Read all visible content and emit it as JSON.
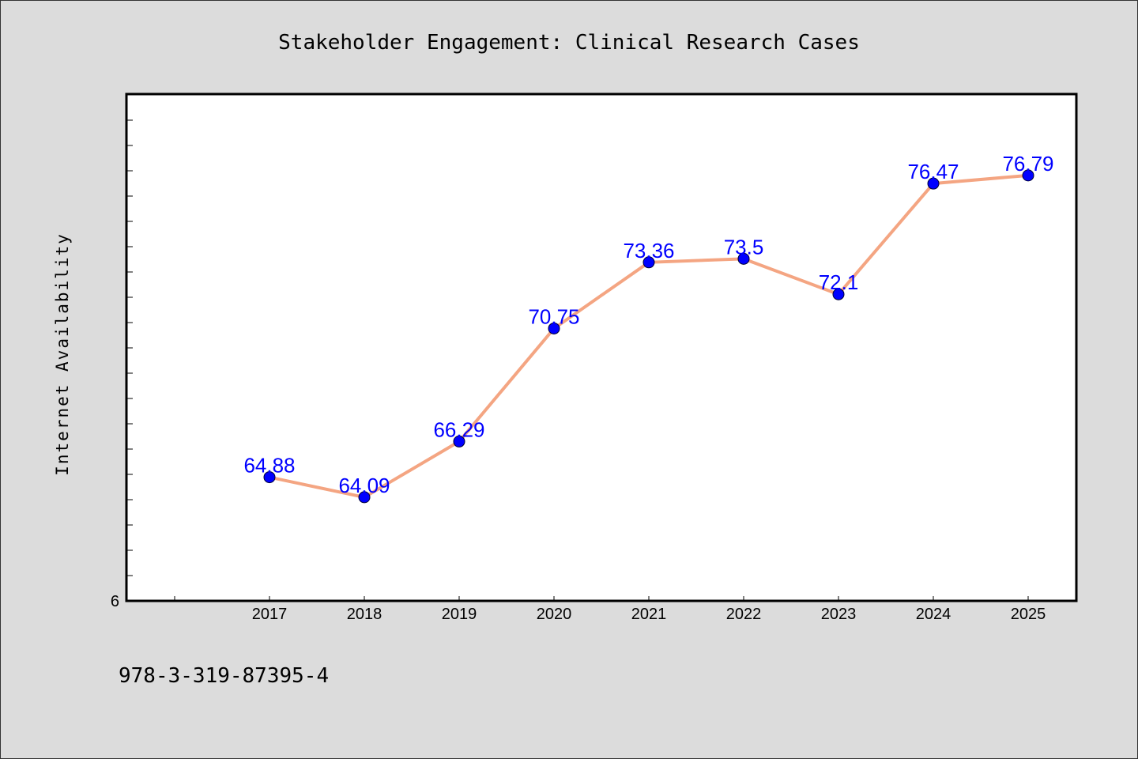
{
  "chart_data": {
    "type": "line",
    "title": "Stakeholder Engagement: Clinical Research Cases",
    "xlabel": "",
    "ylabel": "Internet Availability",
    "x": [
      "2017",
      "2018",
      "2019",
      "2020",
      "2021",
      "2022",
      "2023",
      "2024",
      "2025"
    ],
    "series": [
      {
        "values": [
          64.88,
          64.09,
          66.29,
          70.75,
          73.36,
          73.5,
          72.1,
          76.47,
          76.79
        ],
        "line_color": "#f4a582",
        "marker_color": "#0000ff"
      }
    ],
    "data_labels": [
      "64.88",
      "64.09",
      "66.29",
      "70.75",
      "73.36",
      "73.5",
      "72.1",
      "76.47",
      "76.79"
    ],
    "y_tick_label": "6",
    "ylim": [
      60,
      80
    ],
    "grid": false,
    "frame_color": "#000000",
    "background": "#ffffff"
  },
  "footer": {
    "text": "978-3-319-87395-4"
  }
}
